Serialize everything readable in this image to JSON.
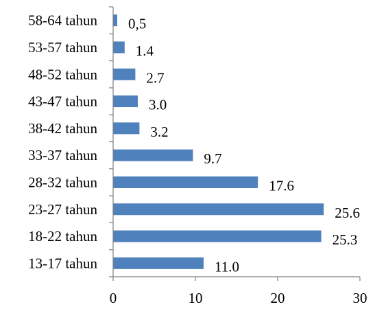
{
  "chart_data": {
    "type": "bar",
    "orientation": "horizontal",
    "categories": [
      "13-17 tahun",
      "18-22 tahun",
      "23-27 tahun",
      "28-32 tahun",
      "33-37 tahun",
      "38-42 tahun",
      "43-47 tahun",
      "48-52 tahun",
      "53-57 tahun",
      "58-64 tahun"
    ],
    "values": [
      11.0,
      25.3,
      25.6,
      17.6,
      9.7,
      3.2,
      3.0,
      2.7,
      1.4,
      0.5
    ],
    "data_labels": [
      "11.0",
      "25.3",
      "25.6",
      "17.6",
      "9.7",
      "3.2",
      "3.0",
      "2.7",
      "1.4",
      "0,5"
    ],
    "x_ticks": [
      "0",
      "10",
      "20",
      "30"
    ],
    "xlim": [
      0,
      30
    ],
    "title": "",
    "xlabel": "",
    "ylabel": "",
    "grid": false,
    "legend": "none",
    "bar_color": "#4f81bd"
  }
}
